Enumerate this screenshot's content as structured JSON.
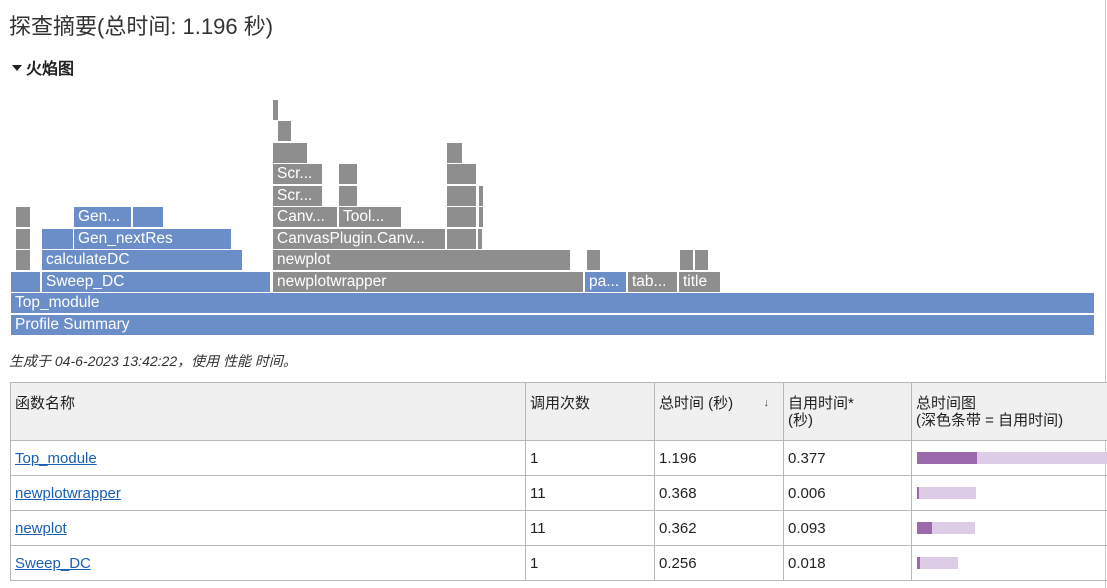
{
  "page": {
    "title": "探查摘要(总时间: 1.196 秒)",
    "section_label": "火焰图",
    "generated_note": "生成于 04-6-2023 13:42:22，使用 性能 时间。"
  },
  "colors": {
    "flame_blue": "#6c8ec8",
    "flame_gray": "#8e8e8e",
    "bar_self": "#9a6aac",
    "bar_total": "#ddcce6",
    "link": "#1a5fb4"
  },
  "flame_labels": {
    "profile_summary": "Profile Summary",
    "top_module": "Top_module",
    "sweep_dc": "Sweep_DC",
    "newplotwrapper": "newplotwrapper",
    "pa": "pa...",
    "tab": "tab...",
    "title": "title",
    "calculate_dc": "calculateDC",
    "newplot": "newplot",
    "gen_nextres": "Gen_nextRes",
    "canvasplugin": "CanvasPlugin.Canv...",
    "gen": "Gen...",
    "canv": "Canv...",
    "tool": "Tool...",
    "scr1": "Scr...",
    "scr2": "Scr..."
  },
  "table": {
    "headers": {
      "name": "函数名称",
      "calls": "调用次数",
      "total_time": "总时间 (秒)",
      "self_time_1": "自用时间*",
      "self_time_2": "(秒)",
      "graph_1": "总时间图",
      "graph_2": "(深色条带 = 自用时间)"
    },
    "sort_indicator": "↓",
    "rows": [
      {
        "name": "Top_module",
        "calls": "1",
        "total": "1.196",
        "self": "0.377",
        "total_frac": 1.0,
        "self_frac": 0.315
      },
      {
        "name": "newplotwrapper",
        "calls": "11",
        "total": "0.368",
        "self": "0.006",
        "total_frac": 0.308,
        "self_frac": 0.005
      },
      {
        "name": "newplot",
        "calls": "11",
        "total": "0.362",
        "self": "0.093",
        "total_frac": 0.303,
        "self_frac": 0.078
      },
      {
        "name": "Sweep_DC",
        "calls": "1",
        "total": "0.256",
        "self": "0.018",
        "total_frac": 0.214,
        "self_frac": 0.015
      }
    ]
  }
}
